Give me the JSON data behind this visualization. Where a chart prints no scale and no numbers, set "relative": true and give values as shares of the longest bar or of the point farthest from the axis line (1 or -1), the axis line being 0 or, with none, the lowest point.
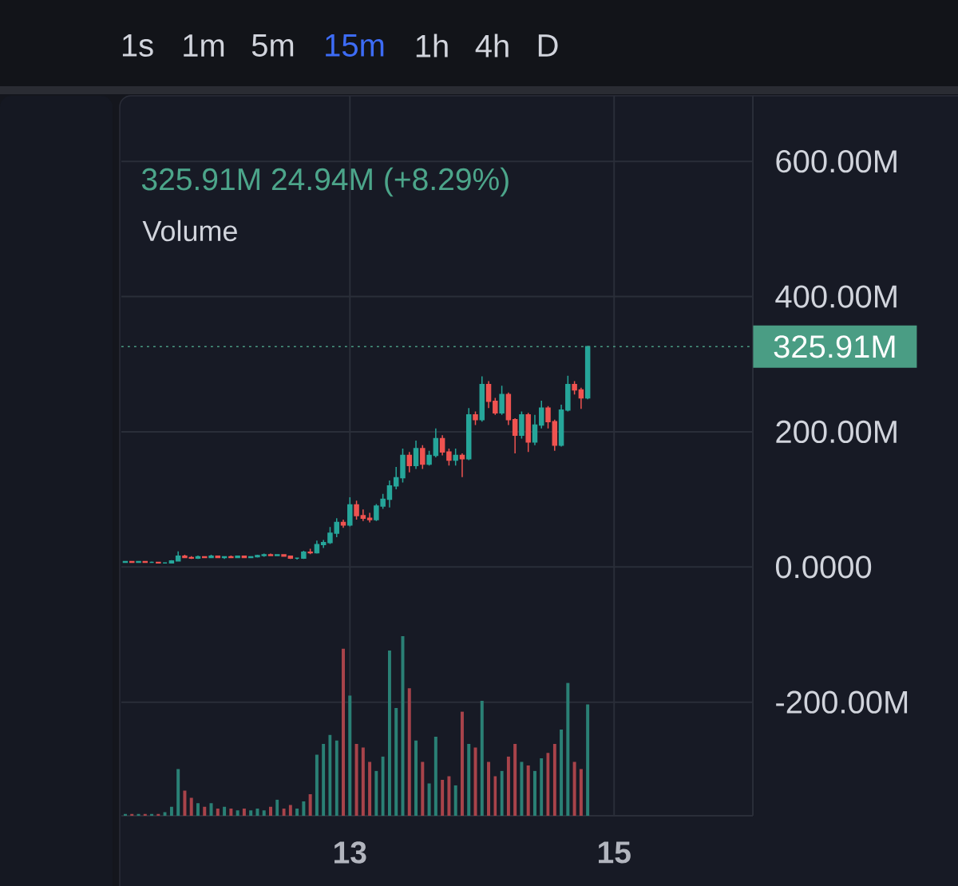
{
  "chart_data": [
    {
      "type": "candlestick",
      "x": [
        11.3,
        11.35,
        11.4,
        11.45,
        11.5,
        11.55,
        11.6,
        11.65,
        11.7,
        11.75,
        11.8,
        11.85,
        11.9,
        11.95,
        12,
        12.05,
        12.1,
        12.15,
        12.2,
        12.25,
        12.3,
        12.35,
        12.4,
        12.45,
        12.5,
        12.55,
        12.6,
        12.65,
        12.7,
        12.75,
        12.8,
        12.85,
        12.9,
        12.95,
        13,
        13.05,
        13.1,
        13.15,
        13.2,
        13.25,
        13.3,
        13.35,
        13.4,
        13.45,
        13.5,
        13.55,
        13.6,
        13.65,
        13.7,
        13.75,
        13.8,
        13.85,
        13.9,
        13.95,
        14,
        14.05,
        14.1,
        14.15,
        14.2,
        14.25,
        14.3,
        14.35,
        14.4,
        14.45,
        14.5,
        14.55,
        14.6,
        14.65,
        14.7,
        14.75,
        14.8
      ],
      "ohlc": [
        [
          7,
          8,
          6,
          8
        ],
        [
          8,
          8,
          6,
          7
        ],
        [
          7,
          8,
          6,
          8
        ],
        [
          8,
          8,
          6,
          7
        ],
        [
          7,
          8,
          6,
          7
        ],
        [
          7,
          7,
          5,
          6
        ],
        [
          6,
          7,
          5,
          6
        ],
        [
          6,
          10,
          5,
          9
        ],
        [
          9,
          23,
          9,
          16
        ],
        [
          16,
          18,
          13,
          14
        ],
        [
          14,
          16,
          12,
          13
        ],
        [
          13,
          17,
          12,
          15
        ],
        [
          15,
          16,
          13,
          14
        ],
        [
          14,
          18,
          13,
          16
        ],
        [
          16,
          17,
          13,
          14
        ],
        [
          14,
          16,
          12,
          15
        ],
        [
          15,
          17,
          13,
          14
        ],
        [
          14,
          17,
          13,
          16
        ],
        [
          16,
          17,
          13,
          14
        ],
        [
          14,
          16,
          13,
          15
        ],
        [
          15,
          18,
          14,
          17
        ],
        [
          17,
          20,
          15,
          18
        ],
        [
          18,
          20,
          16,
          17
        ],
        [
          17,
          19,
          16,
          18
        ],
        [
          18,
          19,
          15,
          16
        ],
        [
          16,
          17,
          12,
          13
        ],
        [
          13,
          14,
          11,
          13
        ],
        [
          13,
          24,
          12,
          22
        ],
        [
          22,
          27,
          19,
          21
        ],
        [
          21,
          39,
          20,
          33
        ],
        [
          33,
          40,
          28,
          36
        ],
        [
          36,
          59,
          34,
          50
        ],
        [
          50,
          72,
          44,
          66
        ],
        [
          66,
          70,
          58,
          62
        ],
        [
          62,
          103,
          60,
          92
        ],
        [
          92,
          98,
          70,
          76
        ],
        [
          76,
          85,
          68,
          72
        ],
        [
          72,
          80,
          66,
          70
        ],
        [
          70,
          93,
          68,
          90
        ],
        [
          90,
          108,
          86,
          100
        ],
        [
          100,
          128,
          88,
          120
        ],
        [
          120,
          148,
          115,
          132
        ],
        [
          132,
          175,
          125,
          165
        ],
        [
          165,
          170,
          140,
          150
        ],
        [
          150,
          187,
          145,
          175
        ],
        [
          175,
          180,
          145,
          152
        ],
        [
          152,
          172,
          150,
          165
        ],
        [
          165,
          205,
          162,
          190
        ],
        [
          190,
          195,
          165,
          170
        ],
        [
          170,
          175,
          150,
          158
        ],
        [
          158,
          175,
          150,
          165
        ],
        [
          165,
          168,
          133,
          160
        ],
        [
          160,
          235,
          158,
          225
        ],
        [
          225,
          230,
          210,
          218
        ],
        [
          218,
          282,
          215,
          270
        ],
        [
          270,
          275,
          235,
          245
        ],
        [
          245,
          250,
          225,
          228
        ],
        [
          228,
          268,
          225,
          255
        ],
        [
          255,
          258,
          210,
          218
        ],
        [
          218,
          220,
          168,
          195
        ],
        [
          195,
          230,
          190,
          225
        ],
        [
          225,
          228,
          170,
          185
        ],
        [
          185,
          225,
          180,
          210
        ],
        [
          210,
          246,
          205,
          235
        ],
        [
          235,
          238,
          205,
          215
        ],
        [
          215,
          218,
          172,
          180
        ],
        [
          180,
          240,
          178,
          232
        ],
        [
          232,
          283,
          230,
          270
        ],
        [
          270,
          275,
          255,
          262
        ],
        [
          262,
          265,
          234,
          250
        ],
        [
          250,
          327,
          248,
          325.91
        ]
      ],
      "colors": [
        "#26a69a",
        "#ef5350",
        "#26a69a",
        "#ef5350",
        "#26a69a",
        "#ef5350",
        "#26a69a",
        "#26a69a",
        "#26a69a",
        "#ef5350",
        "#ef5350",
        "#26a69a",
        "#ef5350",
        "#26a69a",
        "#ef5350",
        "#26a69a",
        "#ef5350",
        "#26a69a",
        "#ef5350",
        "#26a69a",
        "#26a69a",
        "#26a69a",
        "#ef5350",
        "#26a69a",
        "#ef5350",
        "#ef5350",
        "#26a69a",
        "#26a69a",
        "#ef5350",
        "#26a69a",
        "#26a69a",
        "#26a69a",
        "#26a69a",
        "#ef5350",
        "#26a69a",
        "#ef5350",
        "#ef5350",
        "#ef5350",
        "#26a69a",
        "#26a69a",
        "#26a69a",
        "#26a69a",
        "#26a69a",
        "#ef5350",
        "#26a69a",
        "#ef5350",
        "#26a69a",
        "#26a69a",
        "#ef5350",
        "#ef5350",
        "#26a69a",
        "#ef5350",
        "#26a69a",
        "#ef5350",
        "#26a69a",
        "#ef5350",
        "#ef5350",
        "#26a69a",
        "#ef5350",
        "#ef5350",
        "#26a69a",
        "#ef5350",
        "#26a69a",
        "#26a69a",
        "#ef5350",
        "#ef5350",
        "#26a69a",
        "#26a69a",
        "#ef5350",
        "#ef5350",
        "#26a69a"
      ],
      "xlim": [
        11.27,
        16.05
      ],
      "xticks": [
        13,
        15
      ],
      "ylim": [
        -368,
        697
      ],
      "yticks": [
        {
          "value": -200,
          "label": "-200.00M"
        },
        {
          "value": 0,
          "label": "0.0000"
        },
        {
          "value": 200,
          "label": "200.00M"
        },
        {
          "value": 400,
          "label": "400.00M"
        },
        {
          "value": 600,
          "label": "600.00M"
        }
      ],
      "grid": true,
      "ref_lines": [
        {
          "axis": "y",
          "value": 325.91,
          "label": "325.91M",
          "color": "#4a9d84",
          "line_style": "dotted"
        }
      ],
      "annotations": [
        "325.91M 24.94M (+8.29%)",
        "1s",
        "1m",
        "5m",
        "15m",
        "1h",
        "4h",
        "D"
      ]
    },
    {
      "type": "bar",
      "title": "Volume",
      "relative": true,
      "x": [
        11.3,
        11.35,
        11.4,
        11.45,
        11.5,
        11.55,
        11.6,
        11.65,
        11.7,
        11.75,
        11.8,
        11.85,
        11.9,
        11.95,
        12,
        12.05,
        12.1,
        12.15,
        12.2,
        12.25,
        12.3,
        12.35,
        12.4,
        12.45,
        12.5,
        12.55,
        12.6,
        12.65,
        12.7,
        12.75,
        12.8,
        12.85,
        12.9,
        12.95,
        13,
        13.05,
        13.1,
        13.15,
        13.2,
        13.25,
        13.3,
        13.35,
        13.4,
        13.45,
        13.5,
        13.55,
        13.6,
        13.65,
        13.7,
        13.75,
        13.8,
        13.85,
        13.9,
        13.95,
        14,
        14.05,
        14.1,
        14.15,
        14.2,
        14.25,
        14.3,
        14.35,
        14.4,
        14.45,
        14.5,
        14.55,
        14.6,
        14.65,
        14.7,
        14.75,
        14.8
      ],
      "values": [
        0.01,
        0.01,
        0.01,
        0.01,
        0.01,
        0.01,
        0.02,
        0.05,
        0.26,
        0.14,
        0.1,
        0.07,
        0.05,
        0.07,
        0.04,
        0.05,
        0.04,
        0.03,
        0.04,
        0.03,
        0.04,
        0.03,
        0.05,
        0.09,
        0.04,
        0.06,
        0.04,
        0.08,
        0.12,
        0.34,
        0.4,
        0.45,
        0.42,
        0.93,
        0.67,
        0.4,
        0.38,
        0.3,
        0.25,
        0.33,
        0.92,
        0.6,
        1,
        0.71,
        0.42,
        0.3,
        0.18,
        0.44,
        0.2,
        0.22,
        0.17,
        0.58,
        0.4,
        0.38,
        0.64,
        0.3,
        0.22,
        0.25,
        0.33,
        0.4,
        0.3,
        0.28,
        0.25,
        0.32,
        0.35,
        0.4,
        0.48,
        0.74,
        0.3,
        0.26,
        0.62
      ],
      "colors": [
        "#2a8075",
        "#a8434a",
        "#2a8075",
        "#a8434a",
        "#2a8075",
        "#a8434a",
        "#2a8075",
        "#2a8075",
        "#2a8075",
        "#a8434a",
        "#a8434a",
        "#2a8075",
        "#a8434a",
        "#2a8075",
        "#a8434a",
        "#2a8075",
        "#a8434a",
        "#2a8075",
        "#a8434a",
        "#2a8075",
        "#2a8075",
        "#2a8075",
        "#a8434a",
        "#2a8075",
        "#a8434a",
        "#a8434a",
        "#2a8075",
        "#2a8075",
        "#a8434a",
        "#2a8075",
        "#2a8075",
        "#2a8075",
        "#2a8075",
        "#a8434a",
        "#2a8075",
        "#a8434a",
        "#a8434a",
        "#a8434a",
        "#2a8075",
        "#2a8075",
        "#2a8075",
        "#2a8075",
        "#2a8075",
        "#a8434a",
        "#2a8075",
        "#a8434a",
        "#2a8075",
        "#2a8075",
        "#a8434a",
        "#a8434a",
        "#2a8075",
        "#a8434a",
        "#2a8075",
        "#a8434a",
        "#2a8075",
        "#a8434a",
        "#a8434a",
        "#2a8075",
        "#a8434a",
        "#a8434a",
        "#2a8075",
        "#a8434a",
        "#2a8075",
        "#2a8075",
        "#a8434a",
        "#a8434a",
        "#2a8075",
        "#2a8075",
        "#a8434a",
        "#a8434a",
        "#2a8075"
      ],
      "xlim": [
        11.27,
        16.05
      ],
      "xticks": [
        13,
        15
      ],
      "tick_labels": false
    }
  ]
}
